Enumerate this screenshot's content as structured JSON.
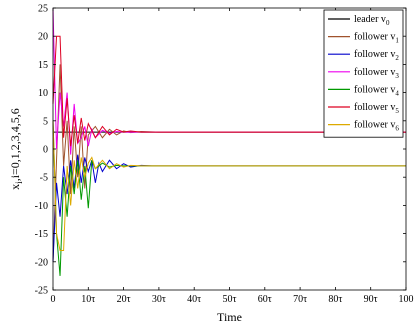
{
  "chart_data": {
    "type": "line",
    "xlabel": "Time",
    "ylabel": "x",
    "ylabel_sub": "i",
    "ylabel_rest": ",i=0,1,2,3,4,5,6",
    "xlim": [
      0,
      100
    ],
    "ylim": [
      -25,
      25
    ],
    "yticks": [
      -25,
      -20,
      -15,
      -10,
      -5,
      0,
      5,
      10,
      15,
      20,
      25
    ],
    "xticks": [
      {
        "value": 0,
        "label": "0"
      },
      {
        "value": 10,
        "label": "10τ"
      },
      {
        "value": 20,
        "label": "20τ"
      },
      {
        "value": 30,
        "label": "30τ"
      },
      {
        "value": 40,
        "label": "40τ"
      },
      {
        "value": 50,
        "label": "50τ"
      },
      {
        "value": 60,
        "label": "60τ"
      },
      {
        "value": 70,
        "label": "70τ"
      },
      {
        "value": 80,
        "label": "80τ"
      },
      {
        "value": 90,
        "label": "90τ"
      },
      {
        "value": 100,
        "label": "100"
      }
    ],
    "grid": false,
    "legend_position": "top-right",
    "series": [
      {
        "name": "leader v",
        "name_sub": "0",
        "color": "#000000",
        "x": [
          0,
          100
        ],
        "y": [
          3,
          3
        ]
      },
      {
        "name": "follower v",
        "name_sub": "1",
        "color": "#a0522d",
        "x": [
          0,
          1,
          2,
          3,
          4,
          5,
          6,
          7,
          8,
          9,
          10,
          12,
          14,
          16,
          18,
          20,
          22,
          25,
          30,
          40,
          100
        ],
        "y": [
          -20,
          -2,
          15,
          -3,
          5,
          -8,
          4,
          -5,
          4,
          -7,
          2.5,
          4,
          2,
          3.5,
          2.5,
          3.2,
          2.9,
          3.1,
          3,
          3,
          3
        ]
      },
      {
        "name": "follower v",
        "name_sub": "2",
        "color": "#0000cc",
        "x": [
          0,
          1,
          2,
          3,
          4,
          5,
          6,
          7,
          8,
          9,
          10,
          11,
          12,
          13,
          14,
          16,
          18,
          20,
          22,
          25,
          28,
          30,
          40,
          100
        ],
        "y": [
          -20,
          -6,
          -12,
          -3,
          -8,
          -2,
          -7,
          -1,
          -6,
          -1.5,
          -4,
          -2,
          -6,
          -2.5,
          -4,
          -2,
          -3.5,
          -2.6,
          -3.2,
          -2.9,
          -3,
          -3,
          -3,
          -3
        ]
      },
      {
        "name": "follower v",
        "name_sub": "3",
        "color": "#ee00ee",
        "x": [
          0,
          1,
          2,
          3,
          4,
          5,
          6,
          7,
          8,
          9,
          10,
          11,
          12,
          14,
          16,
          18,
          20,
          22,
          25,
          30,
          40,
          100
        ],
        "y": [
          25,
          0,
          10,
          4,
          10,
          -1,
          8,
          1,
          2,
          4,
          0.5,
          3.5,
          2,
          3.3,
          2.8,
          3.1,
          3,
          3,
          3,
          3,
          3,
          3
        ]
      },
      {
        "name": "follower v",
        "name_sub": "4",
        "color": "#009900",
        "x": [
          0,
          1,
          2,
          3,
          4,
          5,
          6,
          7,
          8,
          9,
          10,
          11,
          12,
          14,
          16,
          18,
          20,
          22,
          25,
          30,
          40,
          100
        ],
        "y": [
          5,
          -15,
          -22.5,
          -5,
          -12,
          -3,
          -8,
          -2,
          -9,
          -3,
          -10.5,
          -2,
          -3.5,
          -2.5,
          -3.2,
          -2.9,
          -3,
          -3,
          -3,
          -3,
          -3,
          -3
        ]
      },
      {
        "name": "follower v",
        "name_sub": "5",
        "color": "#dd0022",
        "x": [
          0,
          1,
          2,
          3,
          4,
          5,
          6,
          7,
          8,
          9,
          10,
          12,
          14,
          16,
          18,
          20,
          22,
          25,
          30,
          40,
          100
        ],
        "y": [
          8,
          20,
          20,
          2,
          9,
          0.5,
          6,
          1,
          5.5,
          1.5,
          4.5,
          2,
          4,
          2.5,
          3.5,
          3,
          3.2,
          3,
          3,
          3,
          3
        ]
      },
      {
        "name": "follower v",
        "name_sub": "6",
        "color": "#ddaa00",
        "x": [
          0,
          1,
          2,
          3,
          4,
          5,
          6,
          7,
          8,
          9,
          10,
          11,
          12,
          14,
          16,
          18,
          20,
          22,
          25,
          30,
          40,
          100
        ],
        "y": [
          5,
          -15,
          -18,
          -18,
          -3,
          -10,
          -2,
          -7,
          -1.5,
          -5,
          -2.5,
          -1.5,
          -3.5,
          -2,
          -3.5,
          -2.6,
          -3.2,
          -2.9,
          -3,
          -3,
          -3,
          -3
        ]
      }
    ]
  }
}
